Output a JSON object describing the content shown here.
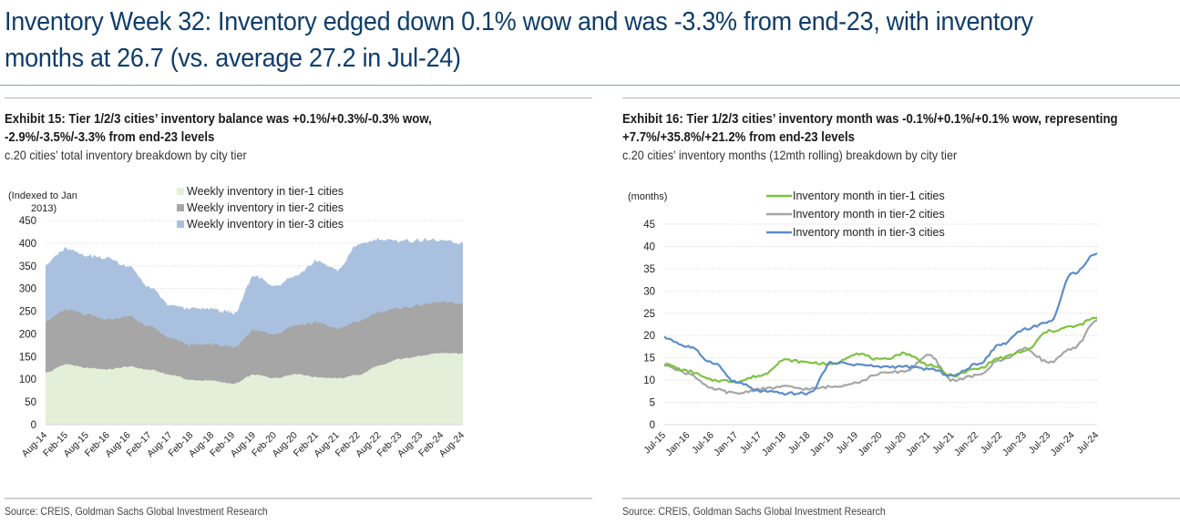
{
  "header": {
    "title_line1": "Inventory Week 32: Inventory edged down 0.1% wow and was -3.3% from end-23, with inventory",
    "title_line2": "months at 26.7 (vs. average 27.2 in Jul-24)"
  },
  "left_panel": {
    "title_line1": "Exhibit 15: Tier 1/2/3 cities’ inventory balance was +0.1%/+0.3%/-0.3% wow,",
    "title_line2": "-2.9%/-3.5%/-3.3% from end-23 levels",
    "subtitle": "c.20 cities’ total inventory breakdown by city tier",
    "source": "Source: CREIS, Goldman Sachs Global Investment Research"
  },
  "right_panel": {
    "title_line1": "Exhibit 16: Tier 1/2/3 cities’ inventory month was -0.1%/+0.1%/+0.1% wow, representing",
    "title_line2": "+7.7%/+35.8%/+21.2% from end-23 levels",
    "subtitle": "c.20 cities’ inventory months (12mth rolling) breakdown by city tier",
    "source": "Source: CREIS, Goldman Sachs Global Investment Research"
  },
  "colors": {
    "title": "#0e3d6b",
    "tier1_area": "#e4efd9",
    "tier2_area": "#a6a6a6",
    "tier3_area": "#a9c1de",
    "tier1_line": "#7dc242",
    "tier2_line": "#a6a6a6",
    "tier3_line": "#5b8dc9"
  },
  "chart_data": [
    {
      "type": "area",
      "stacked": true,
      "title": "Exhibit 15",
      "ylabel": "(Indexed to Jan 2013)",
      "ylabel_lines": [
        "(Indexed to Jan",
        "2013)"
      ],
      "ylim": [
        0,
        450
      ],
      "yticks": [
        0,
        50,
        100,
        150,
        200,
        250,
        300,
        350,
        400,
        450
      ],
      "grid": true,
      "legend_position": "top-center",
      "x": [
        "Aug-14",
        "Feb-15",
        "Aug-15",
        "Feb-16",
        "Aug-16",
        "Feb-17",
        "Aug-17",
        "Feb-18",
        "Aug-18",
        "Feb-19",
        "Aug-19",
        "Feb-20",
        "Aug-20",
        "Feb-21",
        "Aug-21",
        "Feb-22",
        "Aug-22",
        "Feb-23",
        "Aug-23",
        "Feb-24",
        "Aug-24"
      ],
      "series": [
        {
          "name": "Weekly inventory in tier-1 cities",
          "values": [
            115,
            133,
            125,
            122,
            128,
            121,
            110,
            98,
            97,
            90,
            110,
            103,
            112,
            105,
            102,
            110,
            130,
            145,
            152,
            158,
            157
          ]
        },
        {
          "name": "Weekly inventory in tier-2 cities",
          "values": [
            115,
            120,
            118,
            110,
            110,
            95,
            80,
            78,
            80,
            80,
            97,
            98,
            108,
            120,
            110,
            118,
            118,
            112,
            112,
            112,
            110
          ]
        },
        {
          "name": "Weekly inventory in tier-3 cities",
          "values": [
            125,
            135,
            130,
            135,
            110,
            85,
            72,
            80,
            78,
            75,
            120,
            105,
            108,
            135,
            130,
            170,
            160,
            148,
            143,
            135,
            133
          ]
        }
      ]
    },
    {
      "type": "line",
      "title": "Exhibit 16",
      "ylabel": "(months)",
      "ylim": [
        0,
        45
      ],
      "yticks": [
        0,
        5,
        10,
        15,
        20,
        25,
        30,
        35,
        40,
        45
      ],
      "grid": true,
      "legend_position": "top-center",
      "x": [
        "Jul-15",
        "Jan-16",
        "Jul-16",
        "Jan-17",
        "Jul-17",
        "Jan-18",
        "Jul-18",
        "Jan-19",
        "Jul-19",
        "Jan-20",
        "Jul-20",
        "Jan-21",
        "Jul-21",
        "Jan-22",
        "Jul-22",
        "Jan-23",
        "Jul-23",
        "Jan-24",
        "Jul-24"
      ],
      "series": [
        {
          "name": "Inventory month in tier-1 cities",
          "values": [
            13.5,
            12,
            10,
            9.7,
            11,
            14.5,
            14,
            13.5,
            16,
            14.5,
            16,
            13.5,
            11,
            12.5,
            15,
            16.5,
            21,
            22,
            24
          ]
        },
        {
          "name": "Inventory month in tier-2 cities",
          "values": [
            13.5,
            11.5,
            8,
            7,
            8,
            8.5,
            8,
            8.5,
            9.5,
            11.5,
            12,
            15.5,
            10,
            11,
            14.5,
            17,
            14,
            17,
            23.5
          ]
        },
        {
          "name": "Inventory month in tier-3 cities",
          "values": [
            19.5,
            17.5,
            14,
            9.5,
            7.5,
            7,
            7,
            14,
            13.5,
            13,
            13,
            12.5,
            11,
            13.5,
            18,
            21.5,
            23,
            34,
            38.5
          ]
        }
      ]
    }
  ]
}
